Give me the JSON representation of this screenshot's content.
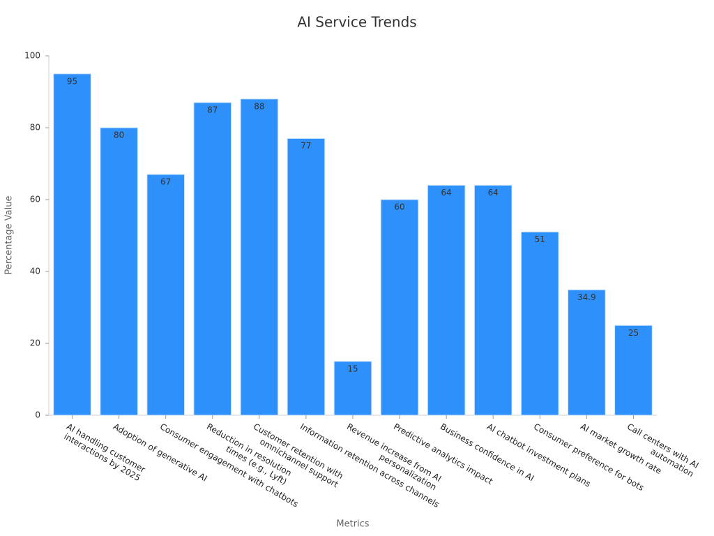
{
  "chart_data": {
    "type": "bar",
    "title": "AI Service Trends",
    "x_label": "Metrics",
    "y_label": "Percentage Value",
    "categories": [
      "AI handling customer\ninteractions by 2025",
      "Adoption of generative AI",
      "Consumer engagement with chatbots",
      "Reduction in resolution\ntimes (e.g., Lyft)",
      "Customer retention with\nomnichannel support",
      "Information retention across channels",
      "Revenue increase from AI\npersonalization",
      "Predictive analytics impact",
      "Business confidence in AI",
      "AI chatbot investment plans",
      "Consumer preference for bots",
      "AI market growth rate",
      "Call centers with AI\nautomation"
    ],
    "values": [
      95,
      80,
      67,
      87,
      88,
      77,
      15,
      60,
      64,
      64,
      51,
      34.9,
      25
    ],
    "color": "#2e90fa",
    "ylim": [
      0,
      100
    ],
    "yticks": [
      0,
      20,
      40,
      60,
      80,
      100
    ],
    "grid": false
  }
}
